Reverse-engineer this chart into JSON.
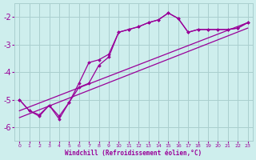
{
  "background_color": "#ceeeed",
  "grid_color": "#aacfcf",
  "line_color": "#990099",
  "marker_color": "#990099",
  "xlabel": "Windchill (Refroidissement éolien,°C)",
  "xlabel_color": "#990099",
  "xlim": [
    -0.5,
    23.5
  ],
  "ylim": [
    -6.5,
    -1.5
  ],
  "yticks": [
    -6,
    -5,
    -4,
    -3,
    -2
  ],
  "xticks": [
    0,
    1,
    2,
    3,
    4,
    5,
    6,
    7,
    8,
    9,
    10,
    11,
    12,
    13,
    14,
    15,
    16,
    17,
    18,
    19,
    20,
    21,
    22,
    23
  ],
  "series_jagged1": {
    "x": [
      0,
      1,
      2,
      3,
      4,
      5,
      6,
      7,
      8,
      9,
      10,
      11,
      12,
      13,
      14,
      15,
      16,
      17,
      18,
      19,
      20,
      21,
      22,
      23
    ],
    "y": [
      -5.0,
      -5.4,
      -5.6,
      -5.2,
      -5.7,
      -5.1,
      -4.4,
      -3.65,
      -3.55,
      -3.35,
      -2.55,
      -2.45,
      -2.35,
      -2.2,
      -2.1,
      -1.85,
      -2.05,
      -2.55,
      -2.45,
      -2.45,
      -2.45,
      -2.45,
      -2.4,
      -2.2
    ]
  },
  "series_jagged2": {
    "x": [
      0,
      1,
      2,
      3,
      4,
      5,
      6,
      7,
      8,
      9,
      10,
      11,
      12,
      13,
      14,
      15,
      16,
      17,
      18,
      19,
      20,
      21,
      22,
      23
    ],
    "y": [
      -5.0,
      -5.4,
      -5.55,
      -5.2,
      -5.6,
      -5.1,
      -4.55,
      -4.4,
      -3.75,
      -3.45,
      -2.55,
      -2.45,
      -2.35,
      -2.2,
      -2.1,
      -1.85,
      -2.05,
      -2.55,
      -2.45,
      -2.45,
      -2.45,
      -2.45,
      -2.4,
      -2.2
    ]
  },
  "series_diag1": {
    "x": [
      0,
      23
    ],
    "y": [
      -5.4,
      -2.2
    ]
  },
  "series_diag2": {
    "x": [
      0,
      23
    ],
    "y": [
      -5.65,
      -2.4
    ]
  }
}
